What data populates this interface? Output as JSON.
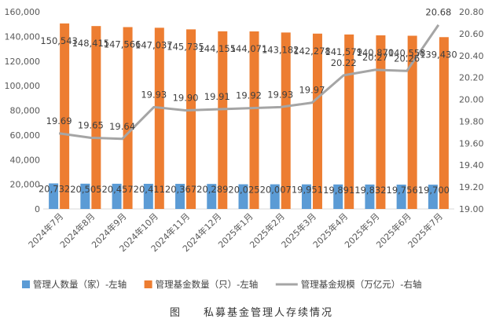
{
  "chart_data": {
    "type": "bar+line",
    "categories": [
      "2024年7月",
      "2024年8月",
      "2024年9月",
      "2024年10月",
      "2024年11月",
      "2024年12月",
      "2025年1月",
      "2025年2月",
      "2025年3月",
      "2025年4月",
      "2025年5月",
      "2025年6月",
      "2025年7月"
    ],
    "series": [
      {
        "name": "管理人数量（家）-左轴",
        "type": "bar",
        "axis": "left",
        "color": "#5b9bd5",
        "values": [
          20732,
          20505,
          20457,
          20411,
          20367,
          20289,
          20025,
          20007,
          19951,
          19891,
          19832,
          19756,
          19700
        ],
        "labels": [
          "20,732",
          "20,505",
          "20,457",
          "20,411",
          "20,367",
          "20,289",
          "20,025",
          "20,007",
          "19,951",
          "19,891",
          "19,832",
          "19,756",
          "19,700"
        ]
      },
      {
        "name": "管理基金数量（只）-左轴",
        "type": "bar",
        "axis": "left",
        "color": "#ed7d31",
        "values": [
          150543,
          148415,
          147566,
          147037,
          145735,
          144155,
          144071,
          143182,
          142278,
          141579,
          140870,
          140558,
          139430
        ],
        "labels": [
          "150,543",
          "148,415",
          "147,566",
          "147,037",
          "145,735",
          "144,155",
          "144,071",
          "143,182",
          "142,278",
          "141,579",
          "140,870",
          "140,558",
          "139,430"
        ]
      },
      {
        "name": "管理基金规模（万亿元）-右轴",
        "type": "line",
        "axis": "right",
        "color": "#a5a5a5",
        "values": [
          19.69,
          19.65,
          19.64,
          19.93,
          19.9,
          19.91,
          19.92,
          19.93,
          19.97,
          20.22,
          20.27,
          20.26,
          20.68
        ],
        "labels": [
          "19.69",
          "19.65",
          "19.64",
          "19.93",
          "19.90",
          "19.91",
          "19.92",
          "19.93",
          "19.97",
          "20.22",
          "20.27",
          "20.26",
          "20.68"
        ]
      }
    ],
    "left_axis": {
      "ylim": [
        0,
        160000
      ],
      "ticks": [
        "0",
        "20,000",
        "40,000",
        "60,000",
        "80,000",
        "100,000",
        "120,000",
        "140,000",
        "160,000"
      ]
    },
    "right_axis": {
      "ylim": [
        19.0,
        20.8
      ],
      "ticks": [
        "19.00",
        "19.20",
        "19.40",
        "19.60",
        "19.80",
        "20.00",
        "20.20",
        "20.40",
        "20.60",
        "20.80"
      ]
    },
    "grid": false,
    "legend_position": "bottom"
  },
  "caption": {
    "prefix": "图",
    "title": "私募基金管理人存续情况"
  }
}
